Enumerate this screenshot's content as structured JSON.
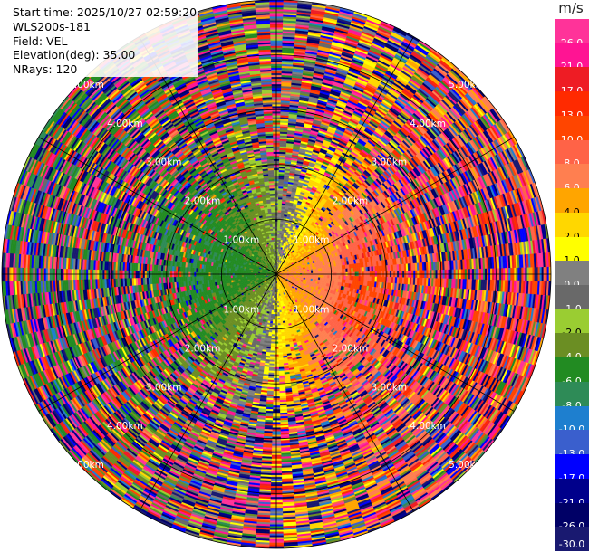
{
  "info": {
    "start_time": "Start time: 2025/10/27 02:59:20",
    "instrument": "WLS200s-181",
    "field": "Field: VEL",
    "elevation": "Elevation(deg): 35.00",
    "nrays": "NRays: 120"
  },
  "colorbar": {
    "unit": "m/s",
    "bins": [
      {
        "lo": 26.0,
        "label": "26.0",
        "color": "#ff3399"
      },
      {
        "lo": 21.0,
        "label": "21.0",
        "color": "#ff1493"
      },
      {
        "lo": 17.0,
        "label": "17.0",
        "color": "#ee1c24"
      },
      {
        "lo": 13.0,
        "label": "13.0",
        "color": "#ff2a00"
      },
      {
        "lo": 10.0,
        "label": "10.0",
        "color": "#ff4500"
      },
      {
        "lo": 8.0,
        "label": "8.0",
        "color": "#ff6347"
      },
      {
        "lo": 6.0,
        "label": "6.0",
        "color": "#ff7f50"
      },
      {
        "lo": 4.0,
        "label": "4.0",
        "color": "#ffa500"
      },
      {
        "lo": 2.0,
        "label": "2.0",
        "color": "#ffd700"
      },
      {
        "lo": 1.0,
        "label": "1.0",
        "color": "#ffff00"
      },
      {
        "lo": 0.0,
        "label": "0.0",
        "color": "#808080"
      },
      {
        "lo": -1.0,
        "label": "-1.0",
        "color": "#696969"
      },
      {
        "lo": -2.0,
        "label": "-2.0",
        "color": "#9acd32"
      },
      {
        "lo": -4.0,
        "label": "-4.0",
        "color": "#6b8e23"
      },
      {
        "lo": -6.0,
        "label": "-6.0",
        "color": "#228b22"
      },
      {
        "lo": -8.0,
        "label": "-8.0",
        "color": "#2e8b57"
      },
      {
        "lo": -10.0,
        "label": "-10.0",
        "color": "#1e7fcf"
      },
      {
        "lo": -13.0,
        "label": "-13.0",
        "color": "#3a5fcd"
      },
      {
        "lo": -17.0,
        "label": "-17.0",
        "color": "#0000ff"
      },
      {
        "lo": -21.0,
        "label": "-21.0",
        "color": "#00008b"
      },
      {
        "lo": -26.0,
        "label": "-26.0",
        "color": "#000066"
      },
      {
        "lo": -30.0,
        "label": "-30.0",
        "color": "#191970"
      }
    ]
  },
  "chart_data": {
    "type": "heatmap",
    "subtype": "polar PPI (plan position indicator)",
    "field": "VEL",
    "unit": "m/s",
    "rays": 120,
    "range_rings_km": [
      1.0,
      2.0,
      3.0,
      4.0,
      5.0
    ],
    "ring_label_text": [
      "1.00km",
      "2.00km",
      "3.00km",
      "4.00km",
      "5.00km"
    ],
    "max_range_km": 5.0,
    "gate_spacing_km": 0.0333,
    "azimuth_spokes_deg": [
      0,
      30,
      60,
      90,
      120,
      150,
      180,
      210,
      240,
      270,
      300,
      330
    ],
    "pattern": {
      "description_values": "near-field velocity follows a dipole: positive (toward east, ~+8 m/s) on the east half, negative (~-6 m/s) on the west half, near zero along north-south; beyond ~2 km data become noisy with random values across the full -30..+30 range",
      "peak_positive": 8.0,
      "peak_negative": -6.0,
      "positive_direction_deg": 100,
      "clean_range_km": 2.0,
      "noise_range_km": 5.0
    }
  }
}
